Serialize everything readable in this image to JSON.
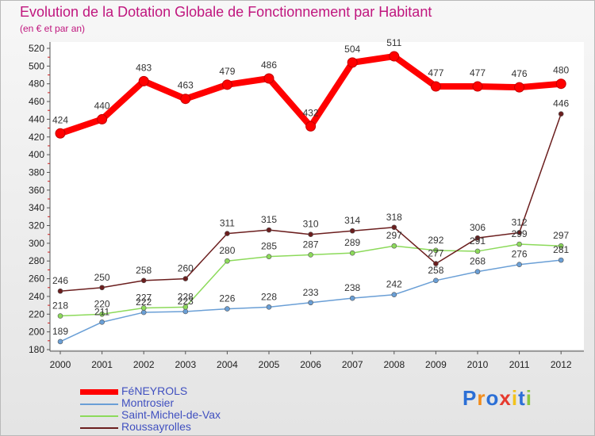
{
  "header": {
    "title": "Evolution de la Dotation Globale de Fonctionnement par Habitant",
    "subtitle": "(en € et par an)"
  },
  "logo": {
    "text": "Proxiti"
  },
  "chart_data": {
    "type": "line",
    "title": "Evolution de la Dotation Globale de Fonctionnement par Habitant",
    "subtitle": "(en € et par an)",
    "xlabel": "",
    "ylabel": "",
    "x": [
      "2000",
      "2001",
      "2002",
      "2003",
      "2004",
      "2005",
      "2006",
      "2007",
      "2008",
      "2009",
      "2010",
      "2011",
      "2012"
    ],
    "ylim": [
      180,
      520
    ],
    "yticks": [
      180,
      200,
      220,
      240,
      260,
      280,
      300,
      320,
      340,
      360,
      380,
      400,
      420,
      440,
      460,
      480,
      500,
      520
    ],
    "grid": false,
    "legend_position": "bottom-left",
    "series": [
      {
        "name": "FéNEYROLS",
        "color": "#ff0000",
        "values": [
          424,
          440,
          483,
          463,
          479,
          486,
          432,
          504,
          511,
          477,
          477,
          476,
          480
        ]
      },
      {
        "name": "Montrosier",
        "color": "#6a9fd6",
        "values": [
          189,
          211,
          222,
          223,
          226,
          228,
          233,
          238,
          242,
          258,
          268,
          276,
          281
        ]
      },
      {
        "name": "Saint-Michel-de-Vax",
        "color": "#8cda5a",
        "values": [
          218,
          220,
          227,
          228,
          280,
          285,
          287,
          289,
          297,
          292,
          291,
          299,
          297
        ]
      },
      {
        "name": "Roussayrolles",
        "color": "#6b1e1e",
        "values": [
          246,
          250,
          258,
          260,
          311,
          315,
          310,
          314,
          318,
          277,
          306,
          312,
          446
        ]
      }
    ],
    "labels": {
      "FéNEYROLS": [
        "424",
        "440",
        "483",
        "463",
        "479",
        "486",
        "432",
        "504",
        "511",
        "477",
        "477",
        "476",
        "480"
      ],
      "Montrosier": [
        "189",
        "211",
        "222",
        "223",
        "226",
        "228",
        "233",
        "238",
        "242",
        "258",
        "268",
        "276",
        "281"
      ],
      "Saint-Michel-de-Vax": [
        "218",
        "220",
        "227",
        "228",
        "280",
        "285",
        "287",
        "289",
        "297",
        "292",
        "291",
        "299",
        "297"
      ],
      "Roussayrolles": [
        "246",
        "250",
        "258",
        "260",
        "311",
        "315",
        "310",
        "314",
        "318",
        "277",
        "306",
        "312",
        "446"
      ]
    }
  }
}
